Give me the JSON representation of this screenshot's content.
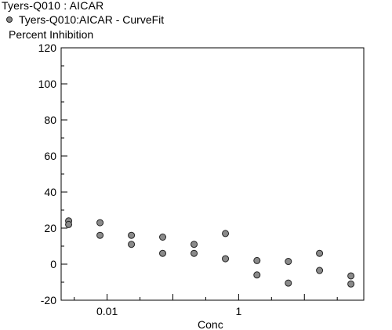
{
  "chart_data": {
    "type": "scatter",
    "title": "Tyers-Q010  : AICAR",
    "series": [
      {
        "name": "Tyers-Q010:AICAR - CurveFit",
        "color": "#8a8a8a",
        "x": [
          0.0026,
          0.0026,
          0.0078,
          0.0078,
          0.0234,
          0.0234,
          0.07,
          0.07,
          0.21,
          0.21,
          0.63,
          0.63,
          1.9,
          1.9,
          5.7,
          5.7,
          17,
          17,
          51,
          51
        ],
        "y": [
          24,
          22,
          23,
          16,
          16,
          11,
          15,
          6,
          11,
          6,
          17,
          3,
          2,
          -6,
          1.5,
          -10.5,
          6,
          -3.5,
          -6.5,
          -11
        ]
      }
    ],
    "xlabel": "Conc",
    "ylabel": "Percent  Inhibition",
    "x_scale": "log",
    "xlim": [
      0.002,
      80
    ],
    "ylim": [
      -20,
      120
    ],
    "y_ticks": [
      -20,
      0,
      20,
      40,
      60,
      80,
      100,
      120
    ],
    "x_ticks": [
      0.01,
      1
    ],
    "x_tick_labels": [
      "0.01",
      "1"
    ],
    "grid": false,
    "legend_position": "top-left"
  }
}
